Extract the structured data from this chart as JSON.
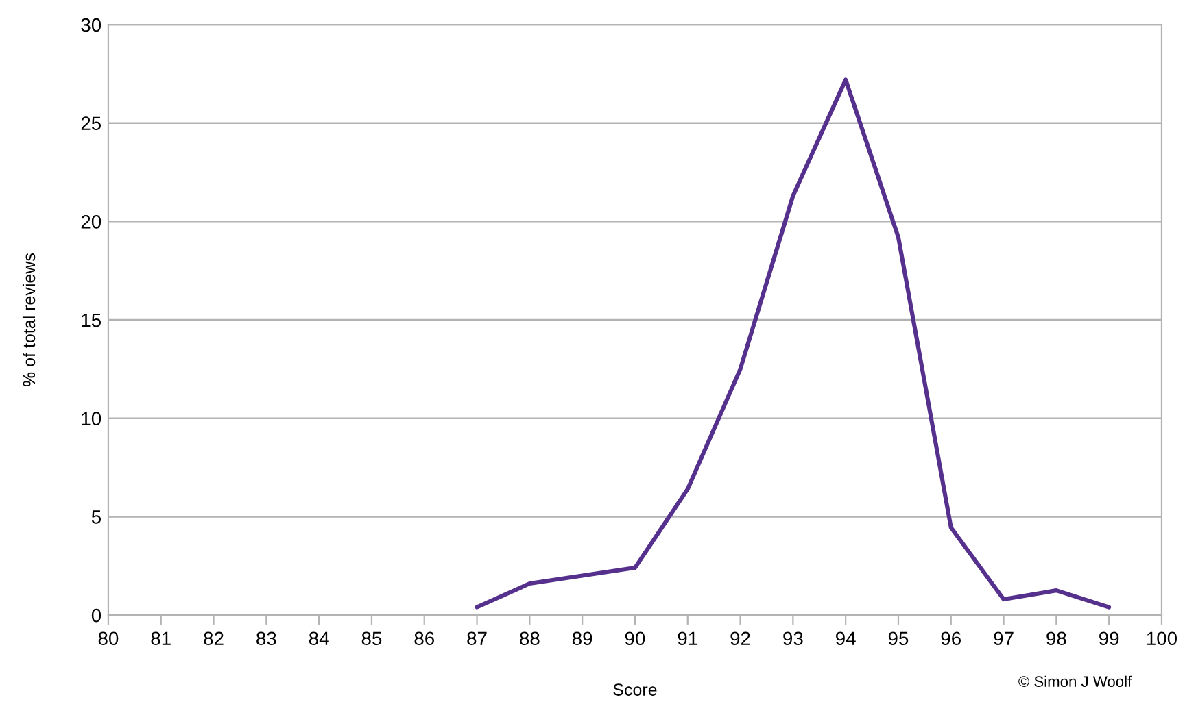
{
  "chart_data": {
    "type": "line",
    "xlabel": "Score",
    "ylabel": "% of total reviews",
    "x": [
      87,
      88,
      89,
      90,
      91,
      92,
      93,
      94,
      95,
      96,
      97,
      98,
      99
    ],
    "series": [
      {
        "color": "#55308d",
        "values": [
          0.4,
          1.6,
          2.0,
          2.4,
          6.4,
          12.5,
          21.3,
          27.2,
          19.2,
          4.45,
          0.8,
          1.25,
          0.4
        ]
      }
    ],
    "xlim": [
      80,
      100
    ],
    "xticks": [
      80,
      81,
      82,
      83,
      84,
      85,
      86,
      87,
      88,
      89,
      90,
      91,
      92,
      93,
      94,
      95,
      96,
      97,
      98,
      99,
      100
    ],
    "ylim": [
      0,
      30
    ],
    "yticks": [
      0,
      5,
      10,
      15,
      20,
      25,
      30
    ],
    "grid": "y",
    "annotations": [
      "© Simon J Woolf"
    ]
  }
}
